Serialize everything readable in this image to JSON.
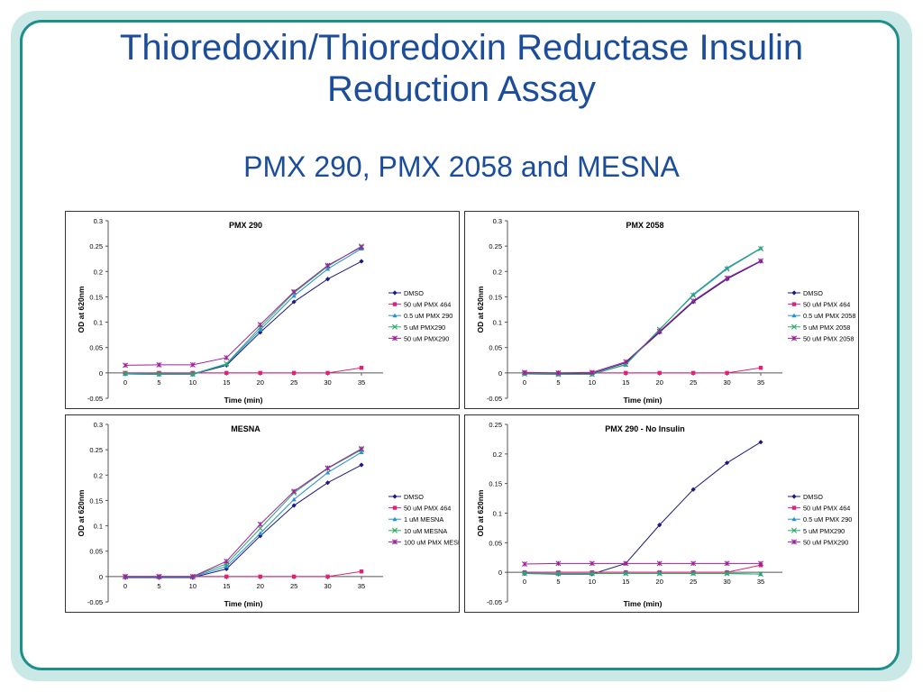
{
  "slide": {
    "title_line1": "Thioredoxin/Thioredoxin Reductase Insulin",
    "title_line2": "Reduction Assay",
    "subtitle": "PMX 290, PMX 2058 and MESNA"
  },
  "colors": {
    "title": "#1b4d9a",
    "frame": "#1f8f8c",
    "series": [
      "#1a1a80",
      "#e0207a",
      "#2c8fd6",
      "#2aaa66",
      "#a020a0"
    ]
  },
  "chart_data": [
    {
      "type": "line",
      "title": "PMX 290",
      "xlabel": "Time (min)",
      "ylabel": "OD at 620nm",
      "x": [
        0,
        5,
        10,
        15,
        20,
        25,
        30,
        35
      ],
      "xticks": [
        "0",
        "5",
        "10",
        "15",
        "20",
        "25",
        "30",
        "35"
      ],
      "yticks": [
        "-0.05",
        "0",
        "0.05",
        "0.1",
        "0.15",
        "0.2",
        "0.25",
        "0.3"
      ],
      "ylim": [
        -0.05,
        0.3
      ],
      "legend_position": "right",
      "series": [
        {
          "name": "DMSO",
          "marker": "diamond",
          "values": [
            -0.002,
            -0.003,
            -0.003,
            0.015,
            0.08,
            0.14,
            0.185,
            0.22
          ]
        },
        {
          "name": "50 uM PMX 464",
          "marker": "square",
          "values": [
            0,
            0,
            0,
            0,
            0,
            0,
            0,
            0.01
          ]
        },
        {
          "name": "0.5 uM PMX 290",
          "marker": "triangle",
          "values": [
            -0.002,
            -0.003,
            -0.003,
            0.017,
            0.085,
            0.152,
            0.205,
            0.245
          ]
        },
        {
          "name": "5 uM PMX290",
          "marker": "x",
          "values": [
            -0.001,
            -0.002,
            -0.002,
            0.018,
            0.09,
            0.158,
            0.21,
            0.25
          ]
        },
        {
          "name": "50 uM PMX290",
          "marker": "star",
          "values": [
            0.015,
            0.016,
            0.016,
            0.03,
            0.095,
            0.16,
            0.212,
            0.248
          ]
        }
      ]
    },
    {
      "type": "line",
      "title": "PMX 2058",
      "xlabel": "Time (min)",
      "ylabel": "OD at 620nm",
      "x": [
        0,
        5,
        10,
        15,
        20,
        25,
        30,
        35
      ],
      "xticks": [
        "0",
        "5",
        "10",
        "15",
        "20",
        "25",
        "30",
        "35"
      ],
      "yticks": [
        "-0.05",
        "0",
        "0.05",
        "0.1",
        "0.15",
        "0.2",
        "0.25",
        "0.3"
      ],
      "ylim": [
        -0.05,
        0.3
      ],
      "legend_position": "right",
      "series": [
        {
          "name": "DMSO",
          "marker": "diamond",
          "values": [
            0,
            -0.001,
            -0.001,
            0.02,
            0.08,
            0.14,
            0.185,
            0.22
          ]
        },
        {
          "name": "50 uM PMX 464",
          "marker": "square",
          "values": [
            0,
            0,
            0,
            0,
            0,
            0,
            0,
            0.01
          ]
        },
        {
          "name": "0.5 uM PMX 2058",
          "marker": "triangle",
          "values": [
            -0.002,
            -0.003,
            -0.003,
            0.016,
            0.085,
            0.155,
            0.207,
            0.246
          ]
        },
        {
          "name": "5 uM PMX 2058",
          "marker": "x",
          "values": [
            -0.002,
            -0.003,
            -0.003,
            0.017,
            0.086,
            0.153,
            0.205,
            0.245
          ]
        },
        {
          "name": "50 uM PMX 2058",
          "marker": "star",
          "values": [
            0.001,
            0,
            0.001,
            0.022,
            0.082,
            0.142,
            0.187,
            0.221
          ]
        }
      ]
    },
    {
      "type": "line",
      "title": "MESNA",
      "xlabel": "Time (min)",
      "ylabel": "OD at 620nm",
      "x": [
        0,
        5,
        10,
        15,
        20,
        25,
        30,
        35
      ],
      "xticks": [
        "0",
        "5",
        "10",
        "15",
        "20",
        "25",
        "30",
        "35"
      ],
      "yticks": [
        "-0.05",
        "0",
        "0.05",
        "0.1",
        "0.15",
        "0.2",
        "0.25",
        "0.3"
      ],
      "ylim": [
        -0.05,
        0.3
      ],
      "legend_position": "right",
      "series": [
        {
          "name": "DMSO",
          "marker": "diamond",
          "values": [
            -0.002,
            -0.002,
            -0.002,
            0.015,
            0.08,
            0.14,
            0.185,
            0.22
          ]
        },
        {
          "name": "50 uM PMX 464",
          "marker": "square",
          "values": [
            0,
            0,
            0,
            0,
            0,
            0,
            0,
            0.01
          ]
        },
        {
          "name": "1 uM MESNA",
          "marker": "triangle",
          "values": [
            -0.001,
            -0.001,
            -0.001,
            0.02,
            0.085,
            0.152,
            0.205,
            0.245
          ]
        },
        {
          "name": "10 uM MESNA",
          "marker": "x",
          "values": [
            0,
            0,
            0,
            0.025,
            0.095,
            0.165,
            0.213,
            0.25
          ]
        },
        {
          "name": "100 uM PMX MESNA",
          "marker": "star",
          "values": [
            0,
            0,
            0,
            0.03,
            0.103,
            0.168,
            0.214,
            0.252
          ]
        }
      ]
    },
    {
      "type": "line",
      "title": "PMX 290 - No Insulin",
      "xlabel": "Time (min)",
      "ylabel": "OD at 620nm",
      "x": [
        0,
        5,
        10,
        15,
        20,
        25,
        30,
        35
      ],
      "xticks": [
        "0",
        "5",
        "10",
        "15",
        "20",
        "25",
        "30",
        "35"
      ],
      "yticks": [
        "-0.05",
        "0",
        "0.05",
        "0.1",
        "0.15",
        "0.2",
        "0.25"
      ],
      "ylim": [
        -0.05,
        0.25
      ],
      "legend_position": "right",
      "series": [
        {
          "name": "DMSO",
          "marker": "diamond",
          "values": [
            -0.002,
            -0.003,
            -0.003,
            0.015,
            0.08,
            0.14,
            0.185,
            0.22
          ]
        },
        {
          "name": "50 uM PMX 464",
          "marker": "square",
          "values": [
            0,
            0,
            0,
            0,
            0,
            0,
            0,
            0.012
          ]
        },
        {
          "name": "0.5 uM PMX 290",
          "marker": "triangle",
          "values": [
            -0.001,
            -0.002,
            -0.002,
            -0.002,
            -0.002,
            -0.002,
            -0.002,
            -0.003
          ]
        },
        {
          "name": "5 uM PMX290",
          "marker": "x",
          "values": [
            -0.002,
            -0.002,
            -0.002,
            -0.002,
            -0.002,
            -0.002,
            -0.002,
            -0.003
          ]
        },
        {
          "name": "50 uM PMX290",
          "marker": "star",
          "values": [
            0.014,
            0.015,
            0.015,
            0.015,
            0.015,
            0.015,
            0.015,
            0.015
          ]
        }
      ]
    }
  ]
}
